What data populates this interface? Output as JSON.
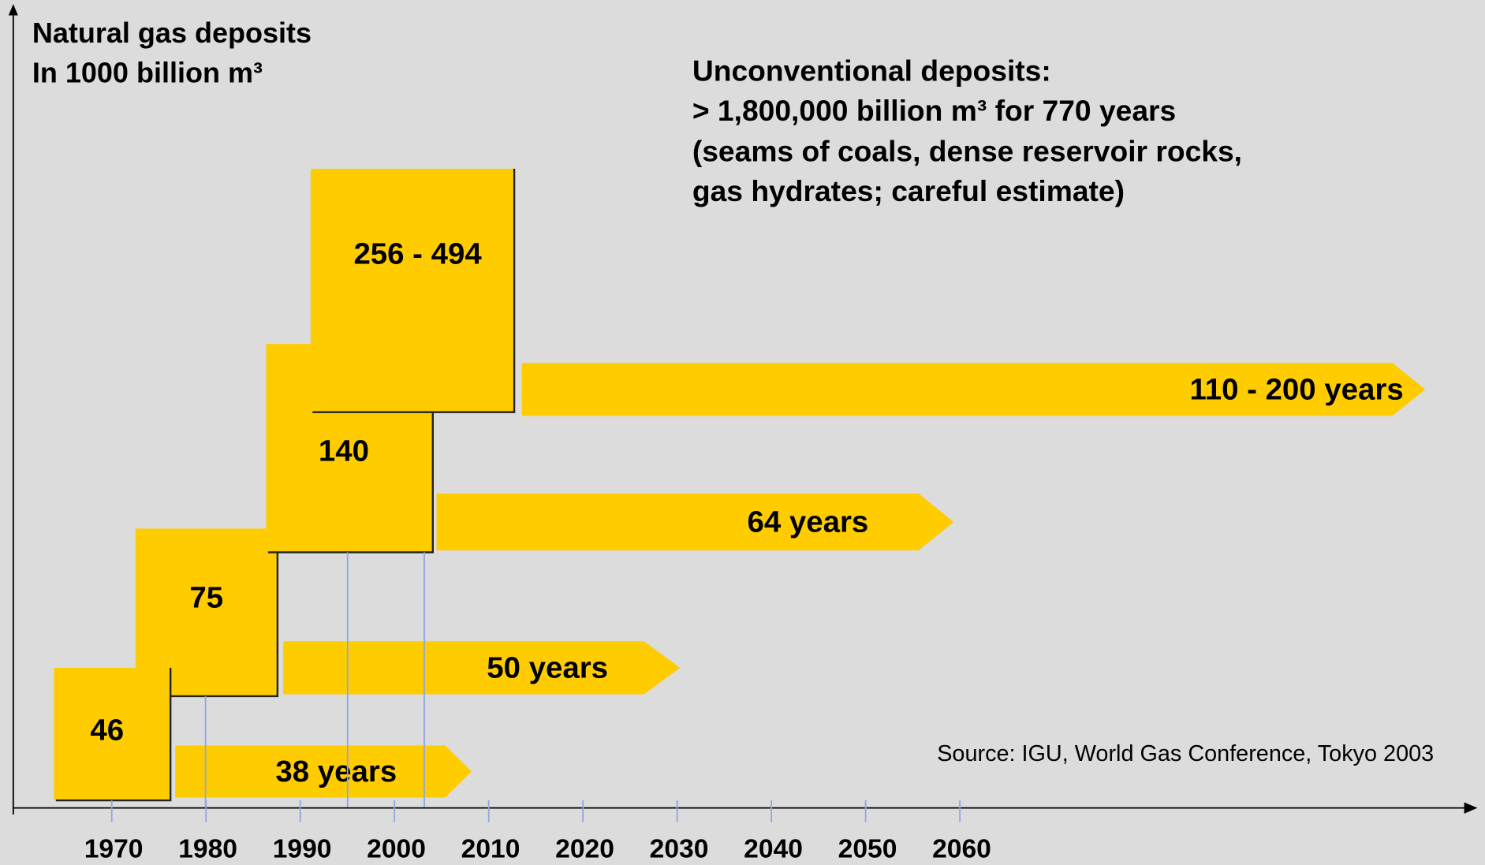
{
  "title_lines": [
    "Natural gas deposits",
    "In 1000 billion m³"
  ],
  "note_lines": [
    "Unconventional deposits:",
    "> 1,800,000 billion m³ for 770 years",
    "(seams of coals, dense reservoir rocks,",
    "gas hydrates; careful estimate)"
  ],
  "source": "Source: IGU, World Gas Conference, Tokyo 2003",
  "x_axis": {
    "ticks": [
      1970,
      1980,
      1990,
      2000,
      2010,
      2020,
      2030,
      2040,
      2050,
      2060
    ]
  },
  "boxes": [
    {
      "label": "75"
    },
    {
      "label": "46"
    },
    {
      "label": "140"
    },
    {
      "label": "256 - 494"
    }
  ],
  "arrows": [
    {
      "label": "38 years"
    },
    {
      "label": "50 years"
    },
    {
      "label": "64 years"
    },
    {
      "label": "110 - 200 years"
    }
  ]
}
